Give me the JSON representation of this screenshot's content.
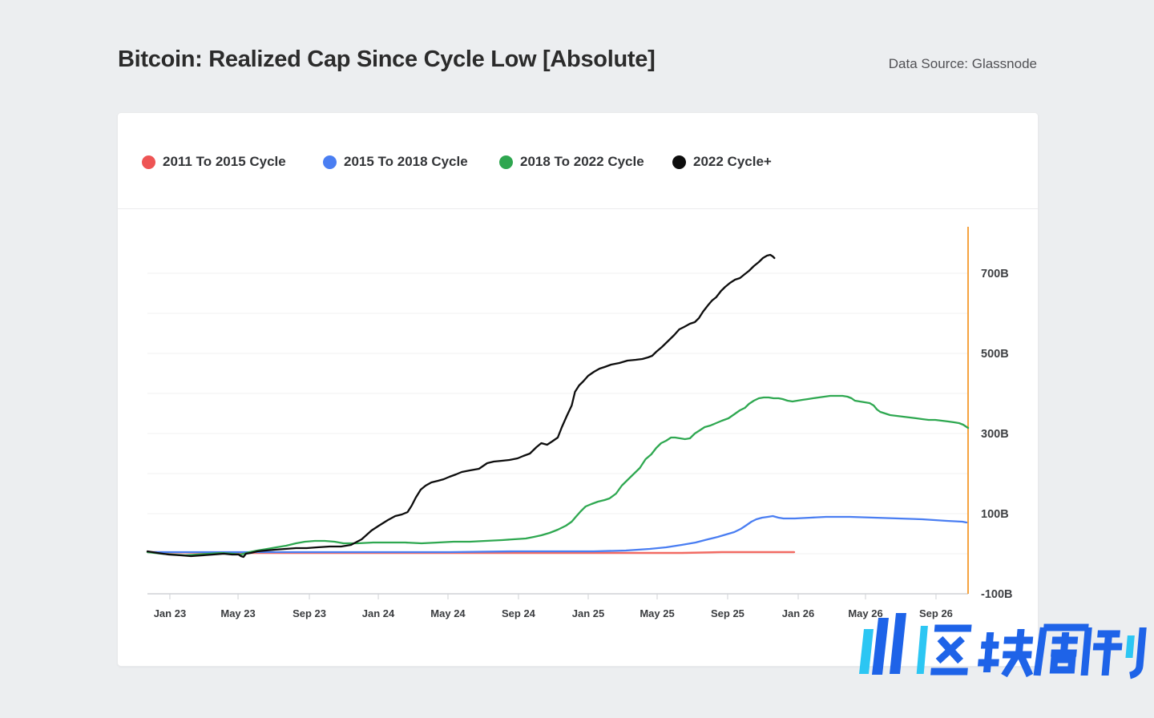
{
  "header": {
    "title": "Bitcoin: Realized Cap Since Cycle Low [Absolute]",
    "data_source": "Data Source: Glassnode"
  },
  "legend": [
    {
      "label": "2011 To 2015 Cycle",
      "color": "#ee5454"
    },
    {
      "label": "2015 To 2018 Cycle",
      "color": "#4a7ef2"
    },
    {
      "label": "2018 To 2022 Cycle",
      "color": "#2ea64f"
    },
    {
      "label": "2022 Cycle+",
      "color": "#0d0d0d"
    }
  ],
  "watermark": {
    "text": "区块周刊",
    "icon": "rising-bars-logo",
    "blue": "#1e63e8",
    "cyan": "#2cc6f3"
  },
  "chart_data": {
    "type": "line",
    "title": "Bitcoin: Realized Cap Since Cycle Low [Absolute]",
    "unit": "USD billions (B)",
    "grid": "horizontal, every 100B",
    "legend_position": "top-left inside card",
    "right_axis_line_color": "#f5a340",
    "axis_color": "#cfd2d6",
    "grid_color": "#f0f1f2",
    "x_axis": {
      "note": "f = fraction of timeline from plot left edge (≈Dec 2022) to right edge (≈Nov 2026)",
      "ticks": [
        {
          "f": 0.0273,
          "label": "Jan 23"
        },
        {
          "f": 0.1104,
          "label": "May 23"
        },
        {
          "f": 0.1973,
          "label": "Sep 23"
        },
        {
          "f": 0.2813,
          "label": "Jan 24"
        },
        {
          "f": 0.3662,
          "label": "May 24"
        },
        {
          "f": 0.4521,
          "label": "Sep 24"
        },
        {
          "f": 0.5371,
          "label": "Jan 25"
        },
        {
          "f": 0.6211,
          "label": "May 25"
        },
        {
          "f": 0.707,
          "label": "Sep 25"
        },
        {
          "f": 0.793,
          "label": "Jan 26"
        },
        {
          "f": 0.875,
          "label": "May 26"
        },
        {
          "f": 0.9609,
          "label": "Sep 26"
        }
      ]
    },
    "y_axis": {
      "range": [
        -100,
        816
      ],
      "gridline_step": 100,
      "ticks": [
        {
          "v": 700,
          "label": "700B"
        },
        {
          "v": 500,
          "label": "500B"
        },
        {
          "v": 300,
          "label": "300B"
        },
        {
          "v": 100,
          "label": "100B"
        },
        {
          "v": -100,
          "label": "-100B"
        }
      ]
    },
    "series": [
      {
        "name": "2011 To 2015 Cycle",
        "color": "#f26b63",
        "width": 2.5,
        "points": [
          [
            0,
            4
          ],
          [
            0.114,
            2
          ],
          [
            0.261,
            2
          ],
          [
            0.407,
            2
          ],
          [
            0.554,
            2
          ],
          [
            0.651,
            2
          ],
          [
            0.7,
            4
          ],
          [
            0.749,
            4
          ],
          [
            0.788,
            4
          ]
        ]
      },
      {
        "name": "2015 To 2018 Cycle",
        "color": "#4a7ef2",
        "width": 2.3,
        "points": [
          [
            0,
            4
          ],
          [
            0.065,
            4
          ],
          [
            0.134,
            4
          ],
          [
            0.212,
            4
          ],
          [
            0.29,
            4
          ],
          [
            0.368,
            4
          ],
          [
            0.446,
            6
          ],
          [
            0.505,
            6
          ],
          [
            0.544,
            6
          ],
          [
            0.583,
            8
          ],
          [
            0.612,
            12
          ],
          [
            0.632,
            16
          ],
          [
            0.651,
            22
          ],
          [
            0.668,
            28
          ],
          [
            0.683,
            36
          ],
          [
            0.695,
            42
          ],
          [
            0.705,
            48
          ],
          [
            0.715,
            54
          ],
          [
            0.723,
            62
          ],
          [
            0.729,
            70
          ],
          [
            0.736,
            80
          ],
          [
            0.742,
            86
          ],
          [
            0.749,
            90
          ],
          [
            0.756,
            92
          ],
          [
            0.762,
            94
          ],
          [
            0.769,
            90
          ],
          [
            0.775,
            88
          ],
          [
            0.789,
            88
          ],
          [
            0.808,
            90
          ],
          [
            0.827,
            92
          ],
          [
            0.856,
            92
          ],
          [
            0.886,
            90
          ],
          [
            0.915,
            88
          ],
          [
            0.944,
            86
          ],
          [
            0.974,
            82
          ],
          [
            0.993,
            80
          ],
          [
            0.998,
            78
          ]
        ]
      },
      {
        "name": "2018 To 2022 Cycle",
        "color": "#2fa851",
        "width": 2.3,
        "points": [
          [
            0,
            4
          ],
          [
            0.017,
            0
          ],
          [
            0.031,
            -2
          ],
          [
            0.046,
            -4
          ],
          [
            0.061,
            -2
          ],
          [
            0.075,
            0
          ],
          [
            0.09,
            2
          ],
          [
            0.104,
            0
          ],
          [
            0.114,
            -2
          ],
          [
            0.124,
            4
          ],
          [
            0.134,
            8
          ],
          [
            0.146,
            12
          ],
          [
            0.157,
            16
          ],
          [
            0.169,
            20
          ],
          [
            0.181,
            26
          ],
          [
            0.192,
            30
          ],
          [
            0.204,
            32
          ],
          [
            0.216,
            32
          ],
          [
            0.228,
            30
          ],
          [
            0.239,
            26
          ],
          [
            0.256,
            26
          ],
          [
            0.275,
            28
          ],
          [
            0.295,
            28
          ],
          [
            0.314,
            28
          ],
          [
            0.334,
            26
          ],
          [
            0.354,
            28
          ],
          [
            0.373,
            30
          ],
          [
            0.393,
            30
          ],
          [
            0.412,
            32
          ],
          [
            0.432,
            34
          ],
          [
            0.446,
            36
          ],
          [
            0.461,
            38
          ],
          [
            0.471,
            42
          ],
          [
            0.48,
            46
          ],
          [
            0.49,
            52
          ],
          [
            0.5,
            60
          ],
          [
            0.51,
            70
          ],
          [
            0.517,
            80
          ],
          [
            0.522,
            92
          ],
          [
            0.528,
            106
          ],
          [
            0.534,
            118
          ],
          [
            0.541,
            124
          ],
          [
            0.549,
            130
          ],
          [
            0.557,
            134
          ],
          [
            0.563,
            138
          ],
          [
            0.571,
            150
          ],
          [
            0.578,
            170
          ],
          [
            0.585,
            184
          ],
          [
            0.593,
            200
          ],
          [
            0.6,
            214
          ],
          [
            0.607,
            236
          ],
          [
            0.614,
            248
          ],
          [
            0.62,
            264
          ],
          [
            0.626,
            276
          ],
          [
            0.632,
            282
          ],
          [
            0.638,
            290
          ],
          [
            0.643,
            290
          ],
          [
            0.649,
            288
          ],
          [
            0.655,
            286
          ],
          [
            0.661,
            288
          ],
          [
            0.667,
            300
          ],
          [
            0.673,
            308
          ],
          [
            0.679,
            316
          ],
          [
            0.686,
            320
          ],
          [
            0.693,
            326
          ],
          [
            0.7,
            332
          ],
          [
            0.708,
            338
          ],
          [
            0.715,
            348
          ],
          [
            0.722,
            358
          ],
          [
            0.728,
            364
          ],
          [
            0.733,
            374
          ],
          [
            0.739,
            382
          ],
          [
            0.745,
            388
          ],
          [
            0.751,
            390
          ],
          [
            0.757,
            390
          ],
          [
            0.763,
            388
          ],
          [
            0.769,
            388
          ],
          [
            0.774,
            386
          ],
          [
            0.78,
            382
          ],
          [
            0.786,
            380
          ],
          [
            0.792,
            382
          ],
          [
            0.798,
            384
          ],
          [
            0.805,
            386
          ],
          [
            0.811,
            388
          ],
          [
            0.818,
            390
          ],
          [
            0.825,
            392
          ],
          [
            0.832,
            394
          ],
          [
            0.84,
            394
          ],
          [
            0.847,
            394
          ],
          [
            0.853,
            392
          ],
          [
            0.858,
            388
          ],
          [
            0.862,
            382
          ],
          [
            0.868,
            380
          ],
          [
            0.874,
            378
          ],
          [
            0.88,
            376
          ],
          [
            0.885,
            370
          ],
          [
            0.889,
            360
          ],
          [
            0.893,
            354
          ],
          [
            0.899,
            350
          ],
          [
            0.905,
            346
          ],
          [
            0.913,
            344
          ],
          [
            0.921,
            342
          ],
          [
            0.929,
            340
          ],
          [
            0.937,
            338
          ],
          [
            0.944,
            336
          ],
          [
            0.952,
            334
          ],
          [
            0.96,
            334
          ],
          [
            0.968,
            332
          ],
          [
            0.976,
            330
          ],
          [
            0.983,
            328
          ],
          [
            0.989,
            326
          ],
          [
            0.994,
            322
          ],
          [
            0.997,
            318
          ],
          [
            1.0,
            314
          ]
        ]
      },
      {
        "name": "2022 Cycle+",
        "color": "#0d0d0d",
        "width": 2.3,
        "points": [
          [
            0,
            6
          ],
          [
            0.012,
            2
          ],
          [
            0.026,
            -2
          ],
          [
            0.041,
            -4
          ],
          [
            0.053,
            -6
          ],
          [
            0.067,
            -4
          ],
          [
            0.08,
            -2
          ],
          [
            0.093,
            0
          ],
          [
            0.103,
            -2
          ],
          [
            0.111,
            -2
          ],
          [
            0.114,
            -6
          ],
          [
            0.117,
            -8
          ],
          [
            0.12,
            0
          ],
          [
            0.126,
            2
          ],
          [
            0.134,
            6
          ],
          [
            0.144,
            8
          ],
          [
            0.155,
            10
          ],
          [
            0.168,
            12
          ],
          [
            0.181,
            14
          ],
          [
            0.194,
            14
          ],
          [
            0.207,
            16
          ],
          [
            0.222,
            18
          ],
          [
            0.236,
            18
          ],
          [
            0.248,
            22
          ],
          [
            0.261,
            36
          ],
          [
            0.273,
            58
          ],
          [
            0.282,
            70
          ],
          [
            0.293,
            84
          ],
          [
            0.302,
            94
          ],
          [
            0.31,
            98
          ],
          [
            0.317,
            104
          ],
          [
            0.322,
            120
          ],
          [
            0.327,
            140
          ],
          [
            0.333,
            160
          ],
          [
            0.339,
            170
          ],
          [
            0.346,
            178
          ],
          [
            0.354,
            182
          ],
          [
            0.361,
            186
          ],
          [
            0.368,
            192
          ],
          [
            0.376,
            198
          ],
          [
            0.383,
            204
          ],
          [
            0.393,
            208
          ],
          [
            0.404,
            212
          ],
          [
            0.414,
            226
          ],
          [
            0.422,
            230
          ],
          [
            0.432,
            232
          ],
          [
            0.441,
            234
          ],
          [
            0.451,
            238
          ],
          [
            0.458,
            244
          ],
          [
            0.466,
            250
          ],
          [
            0.474,
            266
          ],
          [
            0.48,
            276
          ],
          [
            0.487,
            272
          ],
          [
            0.493,
            280
          ],
          [
            0.5,
            290
          ],
          [
            0.505,
            316
          ],
          [
            0.511,
            344
          ],
          [
            0.517,
            370
          ],
          [
            0.521,
            404
          ],
          [
            0.526,
            420
          ],
          [
            0.531,
            430
          ],
          [
            0.537,
            444
          ],
          [
            0.544,
            454
          ],
          [
            0.551,
            462
          ],
          [
            0.557,
            466
          ],
          [
            0.565,
            472
          ],
          [
            0.575,
            476
          ],
          [
            0.585,
            482
          ],
          [
            0.595,
            484
          ],
          [
            0.603,
            486
          ],
          [
            0.61,
            490
          ],
          [
            0.615,
            494
          ],
          [
            0.62,
            504
          ],
          [
            0.627,
            516
          ],
          [
            0.634,
            530
          ],
          [
            0.642,
            546
          ],
          [
            0.648,
            560
          ],
          [
            0.654,
            566
          ],
          [
            0.661,
            574
          ],
          [
            0.667,
            578
          ],
          [
            0.672,
            588
          ],
          [
            0.677,
            604
          ],
          [
            0.683,
            620
          ],
          [
            0.688,
            632
          ],
          [
            0.693,
            640
          ],
          [
            0.699,
            656
          ],
          [
            0.704,
            666
          ],
          [
            0.71,
            676
          ],
          [
            0.716,
            684
          ],
          [
            0.722,
            688
          ],
          [
            0.728,
            698
          ],
          [
            0.733,
            706
          ],
          [
            0.739,
            718
          ],
          [
            0.745,
            728
          ],
          [
            0.75,
            738
          ],
          [
            0.755,
            744
          ],
          [
            0.759,
            746
          ],
          [
            0.762,
            742
          ],
          [
            0.764,
            738
          ]
        ]
      }
    ]
  }
}
